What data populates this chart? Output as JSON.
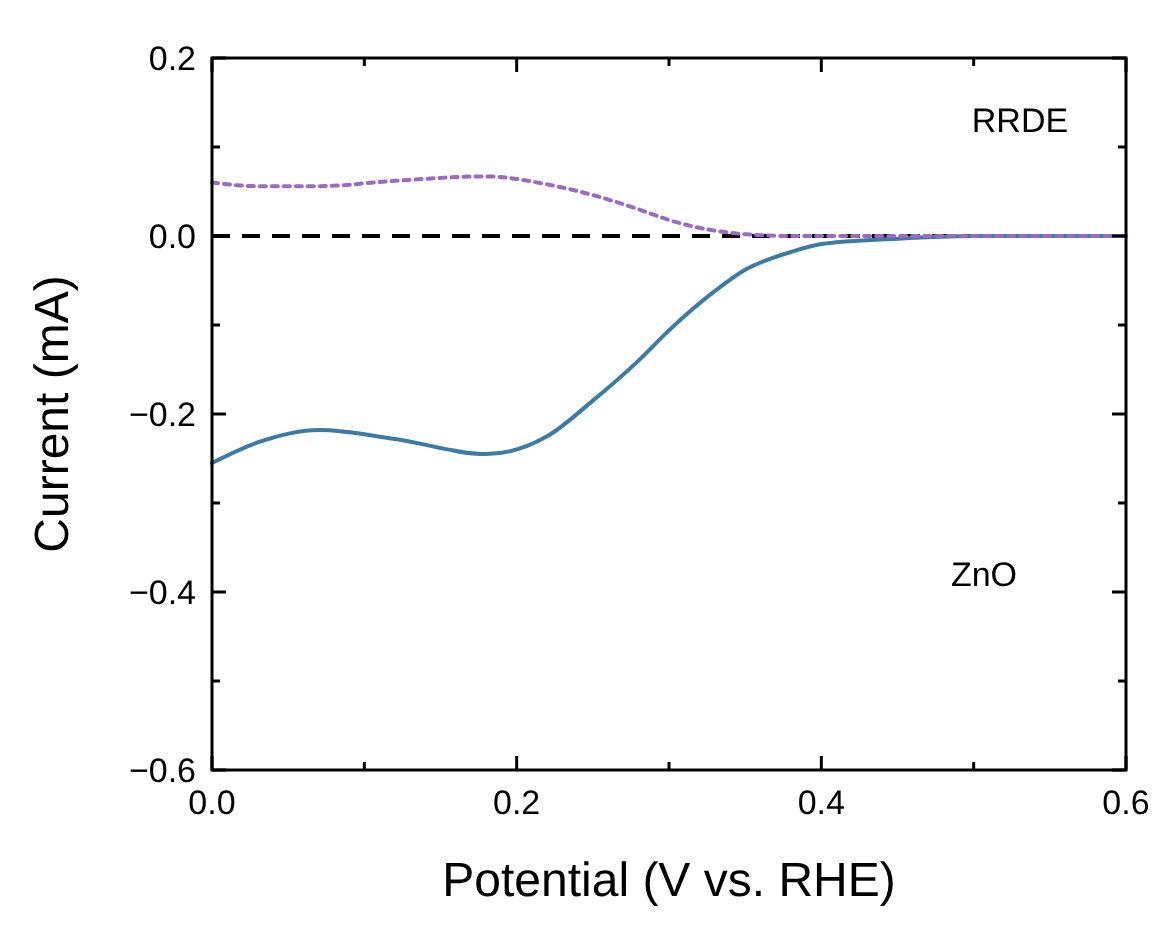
{
  "chart_data": {
    "type": "line",
    "xlabel": "Potential (V vs. RHE)",
    "ylabel": "Current (mA)",
    "xlim": [
      0,
      0.6
    ],
    "ylim": [
      -0.6,
      0.2
    ],
    "xticks": [
      {
        "value": 0,
        "label": "0.0"
      },
      {
        "value": 0.1,
        "label": null
      },
      {
        "value": 0.2,
        "label": "0.2"
      },
      {
        "value": 0.3,
        "label": null
      },
      {
        "value": 0.4,
        "label": "0.4"
      },
      {
        "value": 0.5,
        "label": null
      },
      {
        "value": 0.6,
        "label": "0.6"
      }
    ],
    "yticks": [
      {
        "value": -0.6,
        "label": "−0.6"
      },
      {
        "value": -0.5,
        "label": null
      },
      {
        "value": -0.4,
        "label": "−0.4"
      },
      {
        "value": -0.3,
        "label": null
      },
      {
        "value": -0.2,
        "label": "−0.2"
      },
      {
        "value": -0.1,
        "label": null
      },
      {
        "value": 0,
        "label": "0.0"
      },
      {
        "value": 0.1,
        "label": null
      },
      {
        "value": 0.2,
        "label": "0.2"
      }
    ],
    "grid": false,
    "marker": "none",
    "x": [
      0,
      0.03,
      0.07,
      0.12,
      0.18,
      0.22,
      0.25,
      0.28,
      0.3,
      0.33,
      0.35,
      0.38,
      0.4,
      0.45,
      0.5,
      0.55,
      0.6
    ],
    "series": [
      {
        "name": "ZnO",
        "color": "#3d7aa6",
        "line_style": "solid",
        "values": [
          -0.255,
          -0.232,
          -0.218,
          -0.228,
          -0.245,
          -0.225,
          -0.185,
          -0.14,
          -0.106,
          -0.062,
          -0.038,
          -0.018,
          -0.009,
          -0.003,
          0,
          0,
          0
        ]
      },
      {
        "color": "#9a6bbf",
        "line_style": "dotted",
        "values": [
          0.06,
          0.056,
          0.056,
          0.062,
          0.067,
          0.058,
          0.046,
          0.03,
          0.018,
          0.006,
          0.002,
          0,
          0,
          0,
          0,
          0,
          0
        ]
      }
    ],
    "ref_lines": [
      {
        "axis": "y",
        "value": 0,
        "color": "#000000",
        "line_style": "dashed"
      }
    ],
    "annotations": [
      "RRDE"
    ]
  }
}
